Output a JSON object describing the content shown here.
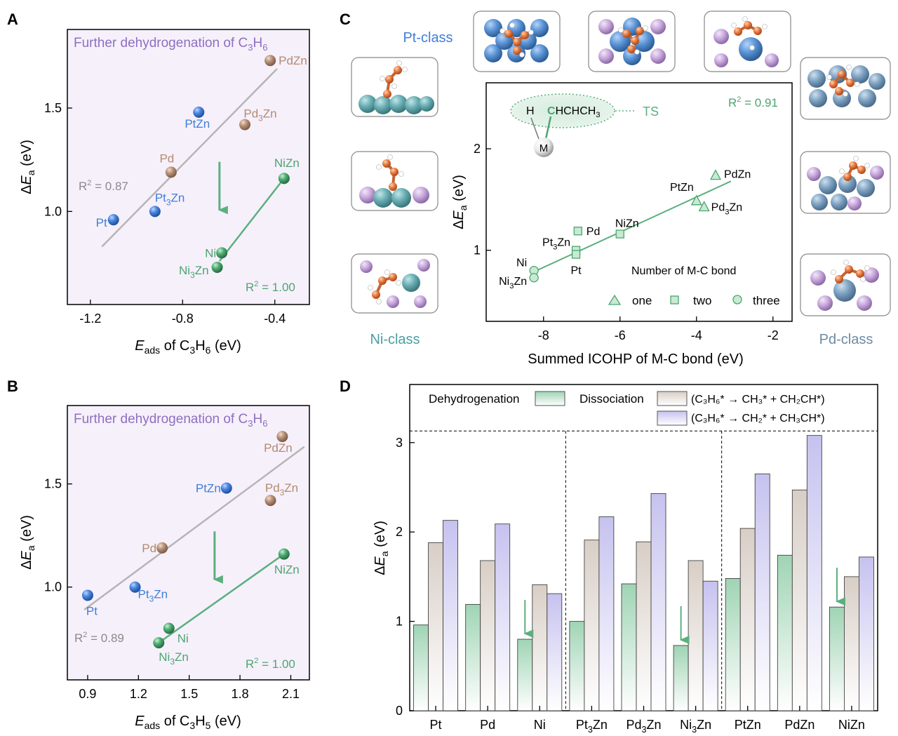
{
  "colors": {
    "pt": "#3f7fd8",
    "pd": "#b38a6f",
    "ni": "#4ca56f",
    "fitA": "#b8b4b4",
    "fitGreen": "#5bb07d",
    "purpleText": "#8e6fc0",
    "panelBg": "#f6f0fb",
    "grey": "#8a8a8a",
    "teal": "#4a9ea3",
    "slate": "#6d8ba5"
  },
  "panel_labels": {
    "a": "A",
    "b": "B",
    "c": "C",
    "d": "D"
  },
  "panel_a": {
    "annotation": {
      "t1": "Further dehydrogenation of C",
      "s1": "3",
      "t2": "H",
      "s2": "6"
    },
    "r2_grey": {
      "base": "R",
      "sup": "2",
      "value": " = 0.87"
    },
    "r2_green": {
      "base": "R",
      "sup": "2",
      "value": " = 1.00"
    },
    "ylabel": {
      "delta": "Δ",
      "E": "E",
      "sub": "a",
      "unit": " (eV)"
    },
    "xlabel": {
      "E": "E",
      "sub1": "ads",
      "t1": " of C",
      "s2": "3",
      "t2": "H",
      "s3": "6",
      "unit": " (eV)"
    }
  },
  "panel_b": {
    "annotation": {
      "t1": "Further dehydrogenation of C",
      "s1": "3",
      "t2": "H",
      "s2": "6"
    },
    "r2_grey": {
      "base": "R",
      "sup": "2",
      "value": " = 0.89"
    },
    "r2_green": {
      "base": "R",
      "sup": "2",
      "value": " = 1.00"
    },
    "ylabel": {
      "delta": "Δ",
      "E": "E",
      "sub": "a",
      "unit": " (eV)"
    },
    "xlabel": {
      "E": "E",
      "sub1": "ads",
      "t1": " of C",
      "s2": "3",
      "t2": "H",
      "s3": "5",
      "unit": " (eV)"
    }
  },
  "panel_c": {
    "class_labels": {
      "pt": "Pt-class",
      "ni": "Ni-class",
      "pd": "Pd-class"
    },
    "r2": {
      "base": "R",
      "sup": "2",
      "value": " = 0.91"
    },
    "ts": {
      "label": "TS",
      "H": "H",
      "C": "C",
      "rest": "HCHCH",
      "sub": "3",
      "M": "M"
    },
    "legend_title": "Number of M-C bond",
    "legend": [
      "one",
      "two",
      "three"
    ],
    "ylabel": {
      "delta": "Δ",
      "E": "E",
      "sub": "a",
      "unit": " (eV)"
    },
    "xlabel": "Summed ICOHP of M-C bond (eV)"
  },
  "panel_d": {
    "legend": {
      "dehyd": "Dehydrogenation",
      "dissoc": "Dissociation",
      "path1": "(C₃H₆* → CH₃* + CH₂CH*)",
      "path2": "(C₃H₆* → CH₂* + CH₃CH*)"
    },
    "ylabel": {
      "delta": "Δ",
      "E": "E",
      "sub": "a",
      "unit": " (eV)"
    }
  },
  "chart_data": [
    {
      "id": "A",
      "type": "scatter",
      "title": "Further dehydrogenation of C3H6",
      "xlabel": "Eads of C3H6 (eV)",
      "ylabel": "ΔEa (eV)",
      "xlim": [
        -1.3,
        -0.25
      ],
      "ylim": [
        0.55,
        1.88
      ],
      "xticks": [
        -1.2,
        -0.8,
        -0.4
      ],
      "yticks": [
        1.0,
        1.5
      ],
      "points": [
        {
          "name": "Pt",
          "base": "Pt",
          "sub": "",
          "rest": "",
          "x": -1.1,
          "y": 0.96,
          "group": "pt"
        },
        {
          "name": "Pt3Zn",
          "base": "Pt",
          "sub": "3",
          "rest": "Zn",
          "x": -0.92,
          "y": 1.0,
          "group": "pt"
        },
        {
          "name": "PtZn",
          "base": "PtZn",
          "sub": "",
          "rest": "",
          "x": -0.73,
          "y": 1.48,
          "group": "pt"
        },
        {
          "name": "Pd",
          "base": "Pd",
          "sub": "",
          "rest": "",
          "x": -0.85,
          "y": 1.19,
          "group": "pd"
        },
        {
          "name": "Pd3Zn",
          "base": "Pd",
          "sub": "3",
          "rest": "Zn",
          "x": -0.53,
          "y": 1.42,
          "group": "pd"
        },
        {
          "name": "PdZn",
          "base": "PdZn",
          "sub": "",
          "rest": "",
          "x": -0.42,
          "y": 1.73,
          "group": "pd"
        },
        {
          "name": "Ni",
          "base": "Ni",
          "sub": "",
          "rest": "",
          "x": -0.63,
          "y": 0.8,
          "group": "ni"
        },
        {
          "name": "Ni3Zn",
          "base": "Ni",
          "sub": "3",
          "rest": "Zn",
          "x": -0.65,
          "y": 0.73,
          "group": "ni"
        },
        {
          "name": "NiZn",
          "base": "NiZn",
          "sub": "",
          "rest": "",
          "x": -0.36,
          "y": 1.16,
          "group": "ni"
        }
      ],
      "fits": [
        {
          "name": "Pt/Pd fit",
          "x": [
            -1.15,
            -0.39
          ],
          "y": [
            0.83,
            1.69
          ],
          "r2": 0.87
        },
        {
          "name": "Ni fit",
          "x": [
            -0.64,
            -0.36
          ],
          "y": [
            0.76,
            1.16
          ],
          "r2": 1.0
        }
      ],
      "arrow": {
        "x": -0.64,
        "y1": 1.24,
        "y2": 1.0
      }
    },
    {
      "id": "B",
      "type": "scatter",
      "title": "Further dehydrogenation of C3H6",
      "xlabel": "Eads of C3H5 (eV)",
      "ylabel": "ΔEa (eV)",
      "xlim": [
        0.78,
        2.21
      ],
      "ylim": [
        0.55,
        1.88
      ],
      "xticks": [
        0.9,
        1.2,
        1.5,
        1.8,
        2.1
      ],
      "yticks": [
        1.0,
        1.5
      ],
      "points": [
        {
          "name": "Pt",
          "base": "Pt",
          "sub": "",
          "rest": "",
          "x": 0.9,
          "y": 0.96,
          "group": "pt"
        },
        {
          "name": "Pt3Zn",
          "base": "Pt",
          "sub": "3",
          "rest": "Zn",
          "x": 1.18,
          "y": 1.0,
          "group": "pt"
        },
        {
          "name": "PtZn",
          "base": "PtZn",
          "sub": "",
          "rest": "",
          "x": 1.72,
          "y": 1.48,
          "group": "pt"
        },
        {
          "name": "Pd",
          "base": "Pd",
          "sub": "",
          "rest": "",
          "x": 1.34,
          "y": 1.19,
          "group": "pd"
        },
        {
          "name": "Pd3Zn",
          "base": "Pd",
          "sub": "3",
          "rest": "Zn",
          "x": 1.98,
          "y": 1.42,
          "group": "pd"
        },
        {
          "name": "PdZn",
          "base": "PdZn",
          "sub": "",
          "rest": "",
          "x": 2.05,
          "y": 1.73,
          "group": "pd"
        },
        {
          "name": "Ni",
          "base": "Ni",
          "sub": "",
          "rest": "",
          "x": 1.38,
          "y": 0.8,
          "group": "ni"
        },
        {
          "name": "Ni3Zn",
          "base": "Ni",
          "sub": "3",
          "rest": "Zn",
          "x": 1.32,
          "y": 0.73,
          "group": "ni"
        },
        {
          "name": "NiZn",
          "base": "NiZn",
          "sub": "",
          "rest": "",
          "x": 2.06,
          "y": 1.16,
          "group": "ni"
        }
      ],
      "fits": [
        {
          "name": "Pt/Pd fit",
          "x": [
            0.88,
            2.18
          ],
          "y": [
            0.89,
            1.68
          ],
          "r2": 0.89
        },
        {
          "name": "Ni fit",
          "x": [
            1.32,
            2.06
          ],
          "y": [
            0.73,
            1.16
          ],
          "r2": 1.0
        }
      ],
      "arrow": {
        "x": 1.65,
        "y1": 1.27,
        "y2": 1.03
      }
    },
    {
      "id": "C",
      "type": "scatter",
      "xlabel": "Summed ICOHP of M-C bond (eV)",
      "ylabel": "ΔEa (eV)",
      "xlim": [
        -9.5,
        -1.5
      ],
      "ylim": [
        0.3,
        2.65
      ],
      "xticks": [
        -8,
        -6,
        -4,
        -2
      ],
      "yticks": [
        1,
        2
      ],
      "points": [
        {
          "name": "PdZn",
          "base": "PdZn",
          "sub": "",
          "rest": "",
          "x": -3.5,
          "y": 1.74,
          "marker": "triangle"
        },
        {
          "name": "PtZn",
          "base": "PtZn",
          "sub": "",
          "rest": "",
          "x": -4.0,
          "y": 1.49,
          "marker": "triangle"
        },
        {
          "name": "Pd3Zn",
          "base": "Pd",
          "sub": "3",
          "rest": "Zn",
          "x": -3.8,
          "y": 1.43,
          "marker": "triangle"
        },
        {
          "name": "Pd",
          "base": "Pd",
          "sub": "",
          "rest": "",
          "x": -7.1,
          "y": 1.19,
          "marker": "square"
        },
        {
          "name": "NiZn",
          "base": "NiZn",
          "sub": "",
          "rest": "",
          "x": -6.0,
          "y": 1.16,
          "marker": "square"
        },
        {
          "name": "Pt3Zn",
          "base": "Pt",
          "sub": "3",
          "rest": "Zn",
          "x": -7.15,
          "y": 1.0,
          "marker": "square"
        },
        {
          "name": "Pt",
          "base": "Pt",
          "sub": "",
          "rest": "",
          "x": -7.15,
          "y": 0.96,
          "marker": "square"
        },
        {
          "name": "Ni",
          "base": "Ni",
          "sub": "",
          "rest": "",
          "x": -8.25,
          "y": 0.8,
          "marker": "circle"
        },
        {
          "name": "Ni3Zn",
          "base": "Ni",
          "sub": "3",
          "rest": "Zn",
          "x": -8.25,
          "y": 0.73,
          "marker": "circle"
        }
      ],
      "fit": {
        "x": [
          -8.3,
          -3.1
        ],
        "y": [
          0.78,
          1.68
        ],
        "r2": 0.91
      }
    },
    {
      "id": "D",
      "type": "bar",
      "ylabel": "ΔEa (eV)",
      "ylim": [
        0,
        3.65
      ],
      "yticks": [
        0,
        1,
        2,
        3
      ],
      "categories": [
        {
          "base": "Pt",
          "sub": "",
          "rest": ""
        },
        {
          "base": "Pd",
          "sub": "",
          "rest": ""
        },
        {
          "base": "Ni",
          "sub": "",
          "rest": ""
        },
        {
          "base": "Pt",
          "sub": "3",
          "rest": "Zn"
        },
        {
          "base": "Pd",
          "sub": "3",
          "rest": "Zn"
        },
        {
          "base": "Ni",
          "sub": "3",
          "rest": "Zn"
        },
        {
          "base": "PtZn",
          "sub": "",
          "rest": ""
        },
        {
          "base": "PdZn",
          "sub": "",
          "rest": ""
        },
        {
          "base": "NiZn",
          "sub": "",
          "rest": ""
        }
      ],
      "series": [
        {
          "name": "Dehydrogenation",
          "values": [
            0.96,
            1.19,
            0.8,
            1.0,
            1.42,
            0.73,
            1.48,
            1.74,
            1.16
          ]
        },
        {
          "name": "Dissociation (C3H6* → CH3* + CH2CH*)",
          "values": [
            1.88,
            1.68,
            1.41,
            1.91,
            1.89,
            1.68,
            2.04,
            2.47,
            1.5
          ]
        },
        {
          "name": "Dissociation (C3H6* → CH2* + CH3CH*)",
          "values": [
            2.13,
            2.09,
            1.31,
            2.17,
            2.43,
            1.45,
            2.65,
            3.08,
            1.72
          ]
        }
      ],
      "reference_line": 3.13,
      "arrows_at": [
        2,
        5,
        8
      ]
    }
  ]
}
